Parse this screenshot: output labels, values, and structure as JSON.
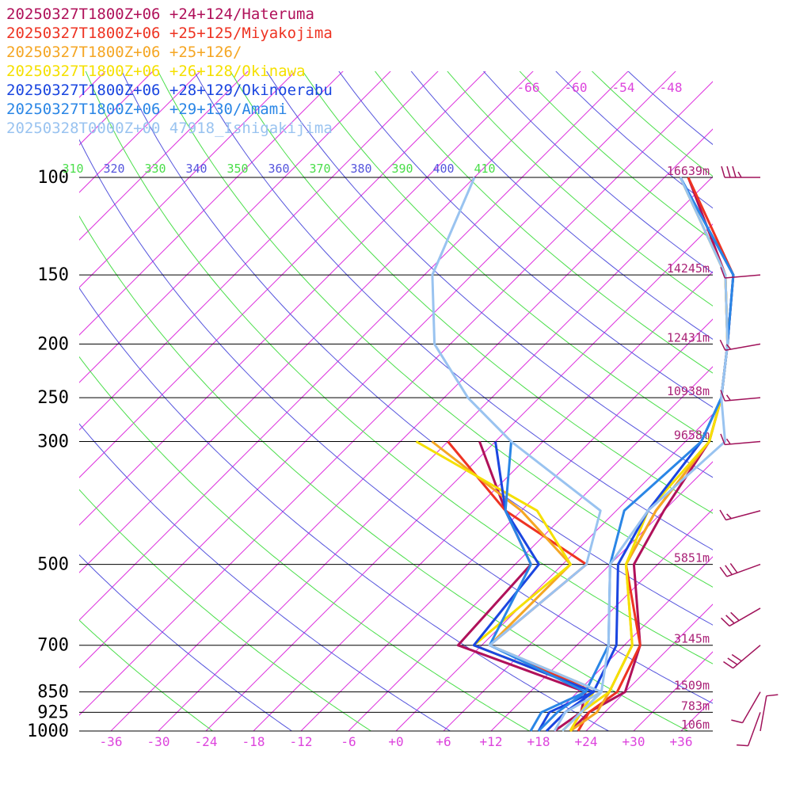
{
  "chart_data": {
    "type": "line",
    "title": "",
    "xlabel": "",
    "ylabel": "",
    "pressure_axis": {
      "ticks": [
        100,
        150,
        200,
        250,
        300,
        500,
        700,
        850,
        925,
        1000
      ],
      "log_scale": true
    },
    "temperature_axis": {
      "ticks": [
        "-36",
        "-30",
        "-24",
        "-18",
        "-12",
        "-6",
        "+0",
        "+6",
        "+12",
        "+18",
        "+24",
        "+30",
        "+36"
      ],
      "xlim": [
        -40,
        40
      ]
    },
    "isotherm_labels": [
      "-66",
      "-60",
      "-54",
      "-48"
    ],
    "theta_labels": [
      {
        "t": "310",
        "c": "#4ade4a"
      },
      {
        "t": "320",
        "c": "#5555dd"
      },
      {
        "t": "330",
        "c": "#4ade4a"
      },
      {
        "t": "340",
        "c": "#5555dd"
      },
      {
        "t": "350",
        "c": "#4ade4a"
      },
      {
        "t": "360",
        "c": "#5555dd"
      },
      {
        "t": "370",
        "c": "#4ade4a"
      },
      {
        "t": "380",
        "c": "#5555dd"
      },
      {
        "t": "390",
        "c": "#4ade4a"
      },
      {
        "t": "400",
        "c": "#5555dd"
      },
      {
        "t": "410",
        "c": "#4ade4a"
      }
    ],
    "heights": [
      {
        "p": 100,
        "label": "16639m"
      },
      {
        "p": 150,
        "label": "14245m"
      },
      {
        "p": 200,
        "label": "12431m"
      },
      {
        "p": 250,
        "label": "10938m"
      },
      {
        "p": 300,
        "label": "9658m"
      },
      {
        "p": 500,
        "label": "5851m"
      },
      {
        "p": 700,
        "label": "3145m"
      },
      {
        "p": 850,
        "label": "1509m"
      },
      {
        "p": 925,
        "label": "783m"
      },
      {
        "p": 1000,
        "label": "106m"
      }
    ],
    "series": [
      {
        "name": "20250327T1800Z+06 +24+124/Hateruma",
        "color": "#b0115a",
        "temperature": [
          [
            1000,
            22
          ],
          [
            925,
            22
          ],
          [
            850,
            24
          ],
          [
            700,
            20
          ],
          [
            500,
            9
          ],
          [
            400,
            6
          ],
          [
            300,
            3
          ],
          [
            250,
            -1
          ],
          [
            200,
            -7
          ],
          [
            150,
            -16
          ],
          [
            100,
            -33
          ]
        ],
        "dewpoint": [
          [
            1000,
            20
          ],
          [
            925,
            21
          ],
          [
            850,
            19
          ],
          [
            700,
            -3
          ],
          [
            500,
            -4
          ],
          [
            400,
            -14
          ],
          [
            300,
            -26
          ]
        ]
      },
      {
        "name": "20250327T1800Z+06 +25+125/Miyakojima",
        "color": "#ee3322",
        "temperature": [
          [
            1000,
            23
          ],
          [
            925,
            22
          ],
          [
            850,
            23
          ],
          [
            700,
            20
          ],
          [
            500,
            8
          ],
          [
            400,
            5
          ],
          [
            300,
            3
          ],
          [
            250,
            -1
          ],
          [
            200,
            -7
          ],
          [
            150,
            -15
          ],
          [
            100,
            -33
          ]
        ],
        "dewpoint": [
          [
            1000,
            22
          ],
          [
            925,
            21
          ],
          [
            850,
            20
          ],
          [
            700,
            1
          ],
          [
            500,
            3
          ],
          [
            400,
            -14
          ],
          [
            300,
            -30
          ]
        ]
      },
      {
        "name": "20250327T1800Z+06 +25+126/",
        "color": "#f5a623",
        "temperature": [
          [
            1000,
            22
          ],
          [
            925,
            23
          ],
          [
            850,
            22
          ],
          [
            700,
            19
          ],
          [
            500,
            8
          ],
          [
            400,
            5
          ],
          [
            300,
            3
          ],
          [
            250,
            -1
          ],
          [
            200,
            -7
          ],
          [
            150,
            -16
          ],
          [
            100,
            -34
          ]
        ],
        "dewpoint": [
          [
            1000,
            21
          ],
          [
            925,
            21
          ],
          [
            850,
            21
          ],
          [
            700,
            1
          ],
          [
            500,
            1
          ],
          [
            400,
            -12
          ],
          [
            300,
            -32
          ]
        ]
      },
      {
        "name": "20250327T1800Z+06 +26+128/Okinawa",
        "color": "#f5e000",
        "temperature": [
          [
            1000,
            22
          ],
          [
            925,
            21
          ],
          [
            850,
            22
          ],
          [
            700,
            19
          ],
          [
            500,
            8
          ],
          [
            400,
            4
          ],
          [
            300,
            3
          ],
          [
            250,
            -1
          ],
          [
            200,
            -7
          ],
          [
            150,
            -16
          ],
          [
            100,
            -34
          ]
        ],
        "dewpoint": [
          [
            1000,
            21
          ],
          [
            925,
            21
          ],
          [
            850,
            20
          ],
          [
            700,
            -1
          ],
          [
            500,
            1
          ],
          [
            400,
            -10
          ],
          [
            300,
            -34
          ]
        ]
      },
      {
        "name": "20250327T1800Z+06 +28+129/Okinoerabu",
        "color": "#1a46e0",
        "temperature": [
          [
            1000,
            19
          ],
          [
            925,
            19
          ],
          [
            850,
            20
          ],
          [
            700,
            17
          ],
          [
            500,
            7
          ],
          [
            400,
            4
          ],
          [
            300,
            2
          ],
          [
            250,
            -1
          ],
          [
            200,
            -7
          ],
          [
            150,
            -15
          ],
          [
            100,
            -34
          ]
        ],
        "dewpoint": [
          [
            1000,
            18
          ],
          [
            925,
            17
          ],
          [
            850,
            20
          ],
          [
            700,
            -1
          ],
          [
            500,
            -3
          ],
          [
            400,
            -14
          ],
          [
            300,
            -24
          ]
        ]
      },
      {
        "name": "20250327T1800Z+06 +29+130/Amami",
        "color": "#2a86e6",
        "temperature": [
          [
            1000,
            18
          ],
          [
            925,
            18
          ],
          [
            850,
            19
          ],
          [
            700,
            16
          ],
          [
            500,
            6
          ],
          [
            400,
            1
          ],
          [
            300,
            2
          ],
          [
            250,
            -1
          ],
          [
            200,
            -7
          ],
          [
            150,
            -15
          ],
          [
            100,
            -34
          ]
        ],
        "dewpoint": [
          [
            1000,
            17
          ],
          [
            925,
            16
          ],
          [
            850,
            19
          ],
          [
            700,
            1
          ],
          [
            500,
            -4
          ],
          [
            400,
            -14
          ],
          [
            300,
            -22
          ]
        ]
      },
      {
        "name": "20250328T0000Z+00 47918_Ishigakijima",
        "color": "#99c3f0",
        "temperature": [
          [
            1000,
            21
          ],
          [
            925,
            21
          ],
          [
            850,
            21
          ],
          [
            700,
            16
          ],
          [
            500,
            6
          ],
          [
            400,
            4
          ],
          [
            300,
            5
          ],
          [
            250,
            -1
          ],
          [
            200,
            -7
          ],
          [
            150,
            -16
          ],
          [
            100,
            -34
          ]
        ],
        "dewpoint": [
          [
            1000,
            20
          ],
          [
            925,
            19
          ],
          [
            850,
            21
          ],
          [
            700,
            1
          ],
          [
            500,
            3
          ],
          [
            400,
            -2
          ],
          [
            300,
            -22
          ],
          [
            250,
            -33
          ],
          [
            200,
            -44
          ],
          [
            150,
            -53
          ],
          [
            100,
            -60
          ]
        ]
      }
    ],
    "winds": [
      {
        "p": 100,
        "dir": 270,
        "kt": 35
      },
      {
        "p": 150,
        "dir": 265,
        "kt": 10
      },
      {
        "p": 200,
        "dir": 260,
        "kt": 15
      },
      {
        "p": 250,
        "dir": 265,
        "kt": 15
      },
      {
        "p": 300,
        "dir": 265,
        "kt": 15
      },
      {
        "p": 400,
        "dir": 255,
        "kt": 15
      },
      {
        "p": 500,
        "dir": 250,
        "kt": 30
      },
      {
        "p": 600,
        "dir": 240,
        "kt": 30
      },
      {
        "p": 700,
        "dir": 230,
        "kt": 30
      },
      {
        "p": 850,
        "dir": 210,
        "kt": 10
      },
      {
        "p": 925,
        "dir": 200,
        "kt": 10
      },
      {
        "p": 1000,
        "dir": 10,
        "kt": 10
      }
    ],
    "colors": {
      "isotherm": "#dd33dd",
      "dry_adiabat_a": "#4ade4a",
      "dry_adiabat_b": "#5555dd",
      "isobar": "#000000",
      "height_label": "#aa2277",
      "temp_label": "#dd44dd",
      "wind_barb": "#a0125a"
    }
  }
}
